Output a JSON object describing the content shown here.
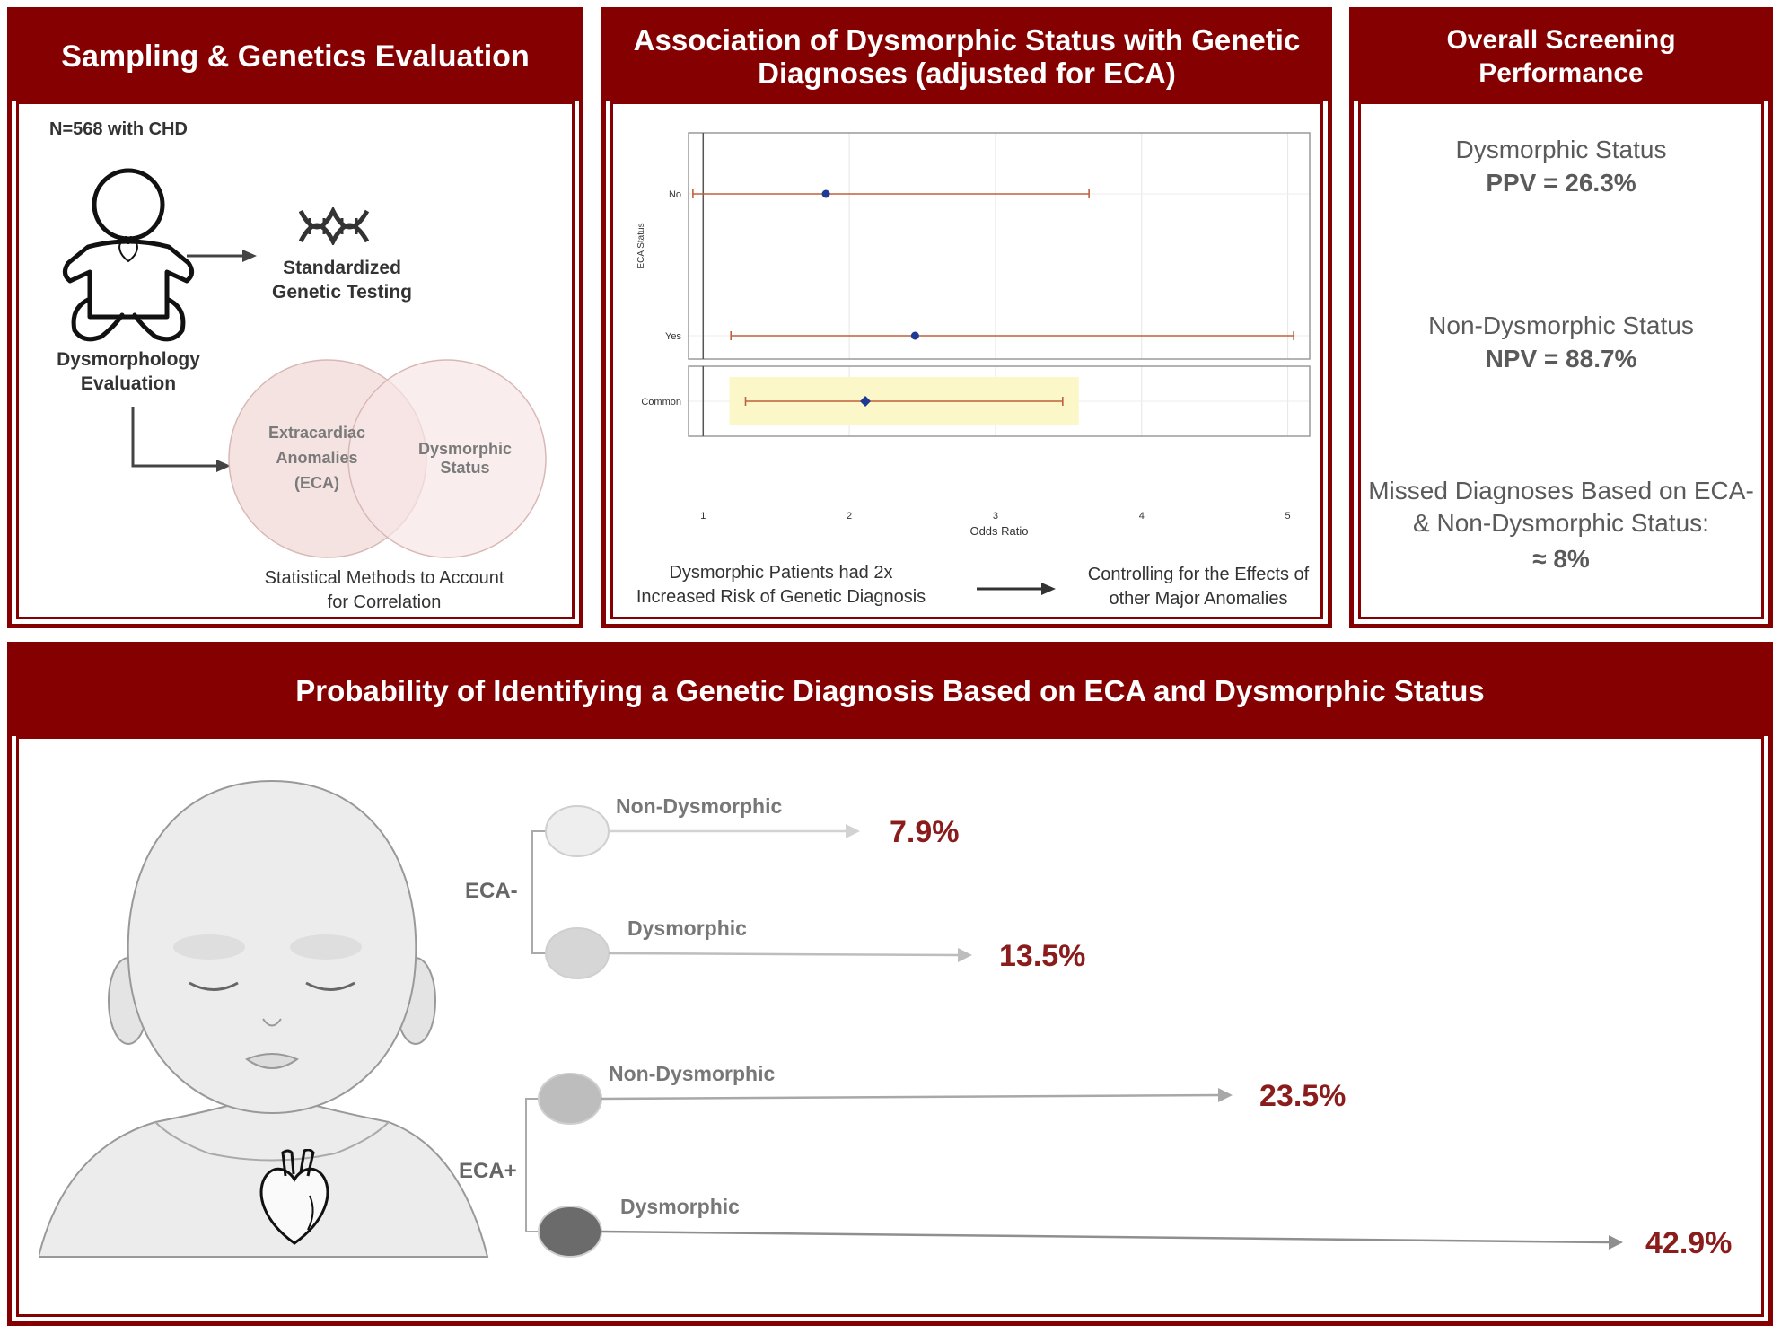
{
  "colors": {
    "maroon": "#850000",
    "value_red": "#8a1c1c",
    "gray_text": "#5a5a5a"
  },
  "panel1": {
    "title": "Sampling & Genetics Evaluation",
    "cohort": "N=568 with CHD",
    "testing": "Standardized Genetic Testing",
    "dysmorph_eval": "Dysmorphology Evaluation",
    "venn_left": "Extracardiac Anomalies (ECA)",
    "venn_right": "Dysmorphic Status",
    "stats_note": "Statistical Methods to Account for Correlation",
    "icons": [
      "baby-outline-icon",
      "dna-icon",
      "heart-icon"
    ]
  },
  "panel2": {
    "title": "Association of Dysmorphic Status with Genetic Diagnoses (adjusted for ECA)",
    "finding": "Dysmorphic Patients had 2x Increased Risk of Genetic Diagnosis",
    "control": "Controlling for the Effects of other Major Anomalies"
  },
  "chart_data": {
    "type": "forest",
    "ylabel": "ECA Status",
    "xlabel": "Odds Ratio",
    "xlim": [
      0.9,
      5.15
    ],
    "x_ticks": [
      "1",
      "2",
      "3",
      "4",
      "5"
    ],
    "reference_line": 1,
    "series_color": "#1f3a93",
    "ci_color": "#c0603c",
    "rows": [
      {
        "label": "No",
        "estimate": 1.84,
        "lower": 0.93,
        "upper": 3.64,
        "facet": "ECA Status"
      },
      {
        "label": "Yes",
        "estimate": 2.45,
        "lower": 1.19,
        "upper": 5.04,
        "facet": "ECA Status"
      },
      {
        "label": "Common",
        "estimate": 2.11,
        "lower": 1.29,
        "upper": 3.46,
        "facet": "Common",
        "highlight": true
      }
    ]
  },
  "panel3": {
    "title": "Overall Screening Performance",
    "dys_label": "Dysmorphic Status",
    "ppv": "PPV = 26.3%",
    "nondys_label": "Non-Dysmorphic Status",
    "npv": "NPV = 88.7%",
    "missed_label": "Missed Diagnoses Based on ECA- & Non-Dysmorphic Status:",
    "missed_value": "≈ 8%"
  },
  "panel4": {
    "title": "Probability of Identifying a Genetic Diagnosis Based on ECA and Dysmorphic Status",
    "groups": [
      {
        "label": "ECA-",
        "branches": [
          {
            "label": "Non-Dysmorphic",
            "value": "7.9%",
            "probability": 7.9
          },
          {
            "label": "Dysmorphic",
            "value": "13.5%",
            "probability": 13.5
          }
        ]
      },
      {
        "label": "ECA+",
        "branches": [
          {
            "label": "Non-Dysmorphic",
            "value": "23.5%",
            "probability": 23.5
          },
          {
            "label": "Dysmorphic",
            "value": "42.9%",
            "probability": 42.9
          }
        ]
      }
    ],
    "icons": [
      "infant-illustration-icon",
      "heart-icon"
    ]
  }
}
